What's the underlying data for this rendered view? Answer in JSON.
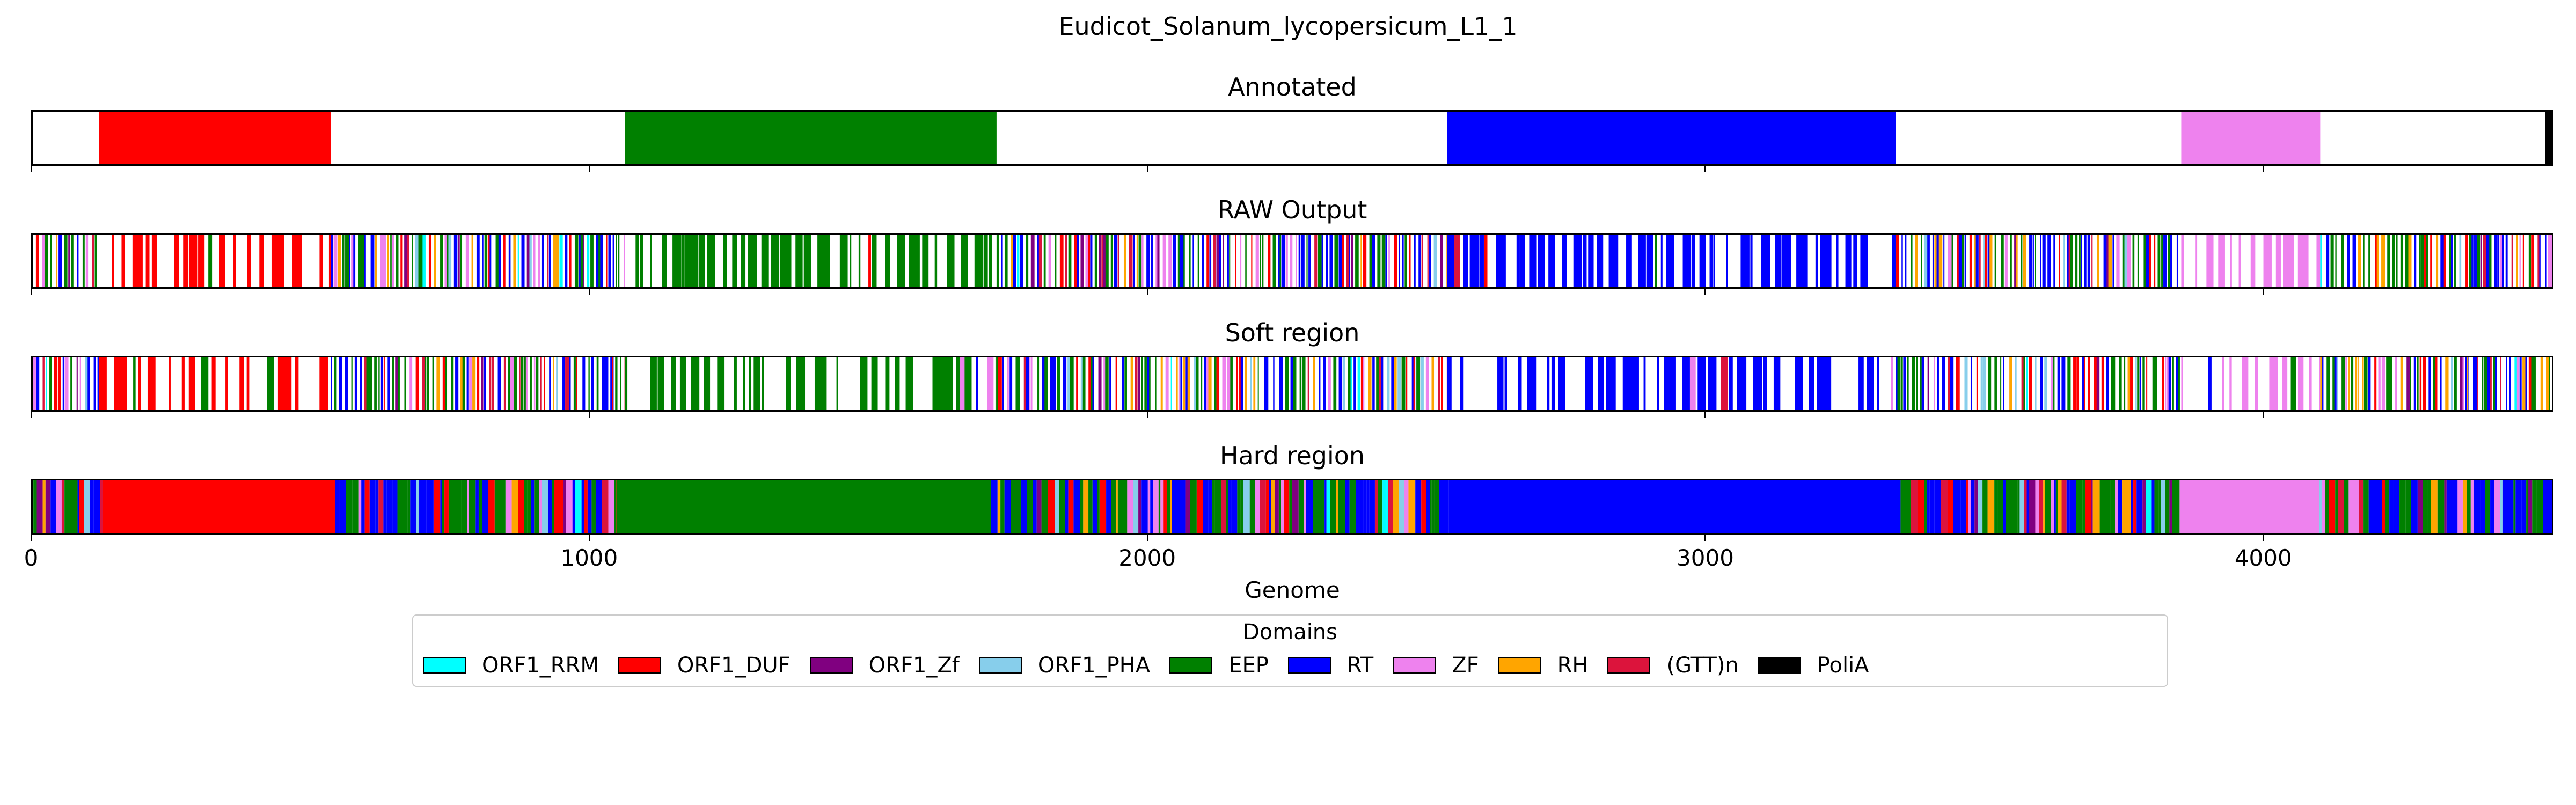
{
  "chart_data": {
    "type": "genome-domain-tracks",
    "title": "Eudicot_Solanum_lycopersicum_L1_1",
    "xlabel": "Genome",
    "xlim": [
      0,
      4520
    ],
    "xticks": [
      0,
      1000,
      2000,
      3000,
      4000
    ],
    "legend": {
      "title": "Domains",
      "placement": "bottom-center",
      "entries": [
        {
          "name": "ORF1_RRM",
          "color": "#00ffff"
        },
        {
          "name": "ORF1_DUF",
          "color": "#ff0000"
        },
        {
          "name": "ORF1_Zf",
          "color": "#800080"
        },
        {
          "name": "ORF1_PHA",
          "color": "#87ceeb"
        },
        {
          "name": "EEP",
          "color": "#008000"
        },
        {
          "name": "RT",
          "color": "#0000ff"
        },
        {
          "name": "ZF",
          "color": "#ee82ee"
        },
        {
          "name": "RH",
          "color": "#ffa500"
        },
        {
          "name": "(GTT)n",
          "color": "#dc143c"
        },
        {
          "name": "PoliA",
          "color": "#000000"
        }
      ]
    },
    "panels": [
      {
        "title": "Annotated",
        "regions": [
          {
            "domain": "ORF1_DUF",
            "start": 122,
            "end": 537
          },
          {
            "domain": "EEP",
            "start": 1064,
            "end": 1730
          },
          {
            "domain": "RT",
            "start": 2537,
            "end": 3341
          },
          {
            "domain": "ZF",
            "start": 3853,
            "end": 4102
          },
          {
            "domain": "PoliA",
            "start": 4505,
            "end": 4520
          }
        ]
      },
      {
        "title": "RAW Output",
        "profile": [
          {
            "dominant": "mixed",
            "start": 0,
            "end": 122
          },
          {
            "dominant": "ORF1_DUF",
            "start": 122,
            "end": 537
          },
          {
            "dominant": "mixed",
            "start": 537,
            "end": 1064
          },
          {
            "dominant": "EEP",
            "start": 1064,
            "end": 1730
          },
          {
            "dominant": "mixed",
            "start": 1730,
            "end": 2537
          },
          {
            "dominant": "RT",
            "start": 2537,
            "end": 3341
          },
          {
            "dominant": "mixed",
            "start": 3341,
            "end": 3853
          },
          {
            "dominant": "ZF",
            "start": 3853,
            "end": 4102
          },
          {
            "dominant": "mixed",
            "start": 4102,
            "end": 4520
          }
        ],
        "style": "sparse"
      },
      {
        "title": "Soft region",
        "profile": [
          {
            "dominant": "mixed",
            "start": 0,
            "end": 122
          },
          {
            "dominant": "ORF1_DUF",
            "start": 122,
            "end": 537
          },
          {
            "dominant": "mixed",
            "start": 537,
            "end": 1064
          },
          {
            "dominant": "EEP",
            "start": 1064,
            "end": 1730
          },
          {
            "dominant": "mixed",
            "start": 1730,
            "end": 2537
          },
          {
            "dominant": "RT",
            "start": 2537,
            "end": 3341
          },
          {
            "dominant": "mixed",
            "start": 3341,
            "end": 3853
          },
          {
            "dominant": "ZF",
            "start": 3853,
            "end": 4102
          },
          {
            "dominant": "mixed",
            "start": 4102,
            "end": 4520
          }
        ],
        "style": "sparse"
      },
      {
        "title": "Hard region",
        "regions": [
          {
            "domain": "ORF1_DUF",
            "start": 128,
            "end": 545
          },
          {
            "domain": "EEP",
            "start": 1050,
            "end": 1720
          },
          {
            "domain": "RT",
            "start": 2540,
            "end": 3350
          },
          {
            "domain": "ZF",
            "start": 3850,
            "end": 4100
          }
        ],
        "profile": [
          {
            "dominant": "mixed",
            "start": 0,
            "end": 128
          },
          {
            "dominant": "mixed",
            "start": 545,
            "end": 1050
          },
          {
            "dominant": "mixed",
            "start": 1720,
            "end": 2540
          },
          {
            "dominant": "mixed",
            "start": 3350,
            "end": 3850
          },
          {
            "dominant": "mixed",
            "start": 4100,
            "end": 4520
          }
        ],
        "style": "dense"
      }
    ]
  }
}
